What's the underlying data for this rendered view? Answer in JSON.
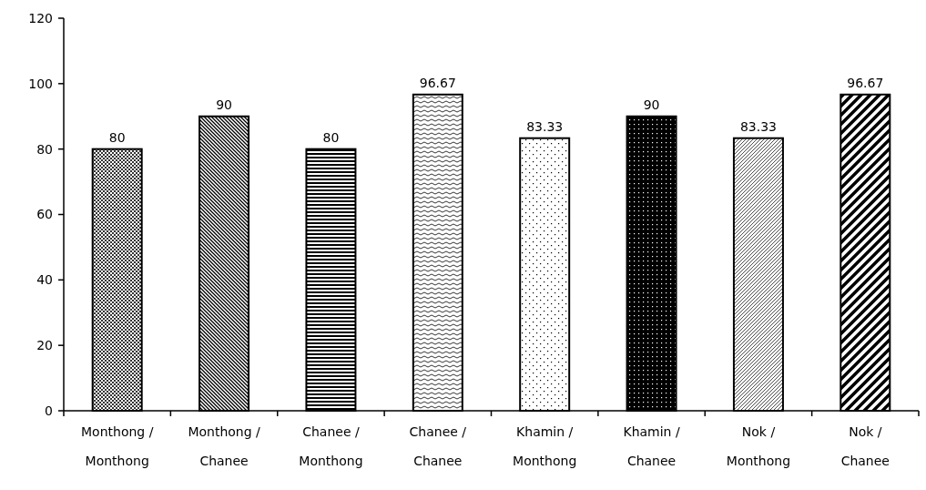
{
  "chart_data": {
    "type": "bar",
    "categories": [
      "Monthong / Monthong",
      "Monthong / Chanee",
      "Chanee / Monthong",
      "Chanee / Chanee",
      "Khamin / Monthong",
      "Khamin / Chanee",
      "Nok / Monthong",
      "Nok / Chanee"
    ],
    "values": [
      80,
      90,
      80,
      96.67,
      83.33,
      90,
      83.33,
      96.67
    ],
    "color": "#000000",
    "ylim": [
      0,
      120
    ],
    "yticks": [
      0,
      20,
      40,
      60,
      80,
      100,
      120
    ],
    "grid": false,
    "data_labels": true
  }
}
